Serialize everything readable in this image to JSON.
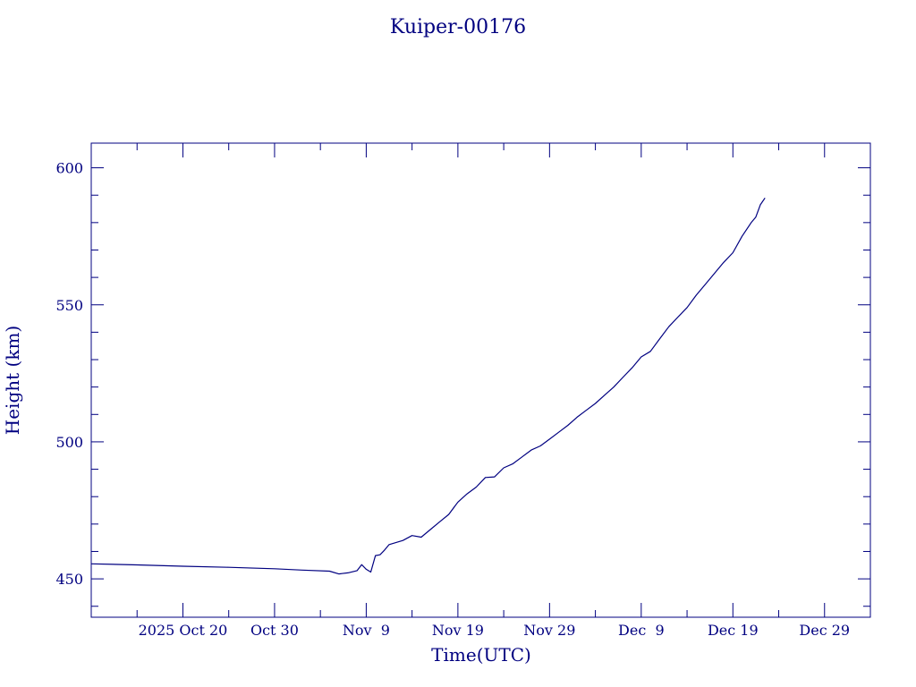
{
  "chart_data": {
    "type": "line",
    "title": "Kuiper-00176",
    "xlabel": "Time(UTC)",
    "ylabel": "Height (km)",
    "x_range": [
      "2025-10-10",
      "2026-01-03"
    ],
    "ylim": [
      436,
      609
    ],
    "grid": false,
    "legend": "none",
    "y_ticks": [
      450,
      500,
      550,
      600
    ],
    "y_tick_labels": [
      "450",
      "500",
      "550",
      "600"
    ],
    "x_ticks": [
      {
        "date": "2025-10-20",
        "label": "2025 Oct 20"
      },
      {
        "date": "2025-10-30",
        "label": "Oct 30"
      },
      {
        "date": "2025-11-09",
        "label": "Nov  9"
      },
      {
        "date": "2025-11-19",
        "label": "Nov 19"
      },
      {
        "date": "2025-11-29",
        "label": "Nov 29"
      },
      {
        "date": "2025-12-09",
        "label": "Dec  9"
      },
      {
        "date": "2025-12-19",
        "label": "Dec 19"
      },
      {
        "date": "2025-12-29",
        "label": "Dec 29"
      }
    ],
    "x_minor_ticks": [
      "2025-10-15",
      "2025-10-25",
      "2025-11-04",
      "2025-11-14",
      "2025-11-24",
      "2025-12-04",
      "2025-12-14",
      "2025-12-24"
    ],
    "y_minor_step": 10,
    "series": [
      {
        "color": "#000080",
        "points": [
          [
            "2025-10-10",
            455.5
          ],
          [
            "2025-10-15",
            455.1
          ],
          [
            "2025-10-20",
            454.6
          ],
          [
            "2025-10-25",
            454.2
          ],
          [
            "2025-10-30",
            453.7
          ],
          [
            "2025-11-02",
            453.2
          ],
          [
            "2025-11-05",
            452.8
          ],
          [
            "2025-11-06",
            451.8
          ],
          [
            "2025-11-07",
            452.2
          ],
          [
            "2025-11-08",
            453.0
          ],
          [
            "2025-11-08T12",
            455.2
          ],
          [
            "2025-11-09",
            453.5
          ],
          [
            "2025-11-09T12",
            452.5
          ],
          [
            "2025-11-10",
            458.5
          ],
          [
            "2025-11-10T12",
            458.8
          ],
          [
            "2025-11-11",
            460.5
          ],
          [
            "2025-11-11T12",
            462.5
          ],
          [
            "2025-11-13",
            464.0
          ],
          [
            "2025-11-14",
            465.8
          ],
          [
            "2025-11-15",
            465.2
          ],
          [
            "2025-11-16",
            468.0
          ],
          [
            "2025-11-17",
            470.8
          ],
          [
            "2025-11-18",
            473.5
          ],
          [
            "2025-11-19",
            478.0
          ],
          [
            "2025-11-20",
            481.0
          ],
          [
            "2025-11-21",
            483.5
          ],
          [
            "2025-11-22",
            487.0
          ],
          [
            "2025-11-23",
            487.2
          ],
          [
            "2025-11-24",
            490.5
          ],
          [
            "2025-11-25",
            492.0
          ],
          [
            "2025-11-26",
            494.5
          ],
          [
            "2025-11-27",
            497.0
          ],
          [
            "2025-11-28",
            498.5
          ],
          [
            "2025-11-29",
            501.0
          ],
          [
            "2025-11-30",
            503.5
          ],
          [
            "2025-12-01",
            506.0
          ],
          [
            "2025-12-02",
            509.0
          ],
          [
            "2025-12-03",
            511.5
          ],
          [
            "2025-12-04",
            514.0
          ],
          [
            "2025-12-05",
            517.0
          ],
          [
            "2025-12-06",
            520.0
          ],
          [
            "2025-12-07",
            523.5
          ],
          [
            "2025-12-08",
            527.0
          ],
          [
            "2025-12-09",
            531.0
          ],
          [
            "2025-12-10",
            533.0
          ],
          [
            "2025-12-11",
            537.5
          ],
          [
            "2025-12-12",
            542.0
          ],
          [
            "2025-12-13",
            545.5
          ],
          [
            "2025-12-14",
            549.0
          ],
          [
            "2025-12-15",
            553.5
          ],
          [
            "2025-12-16",
            557.5
          ],
          [
            "2025-12-17",
            561.5
          ],
          [
            "2025-12-18",
            565.5
          ],
          [
            "2025-12-19",
            569.0
          ],
          [
            "2025-12-20",
            575.0
          ],
          [
            "2025-12-21",
            580.0
          ],
          [
            "2025-12-21T12",
            582.0
          ],
          [
            "2025-12-22",
            586.5
          ],
          [
            "2025-12-22T12",
            589.0
          ]
        ]
      }
    ]
  }
}
